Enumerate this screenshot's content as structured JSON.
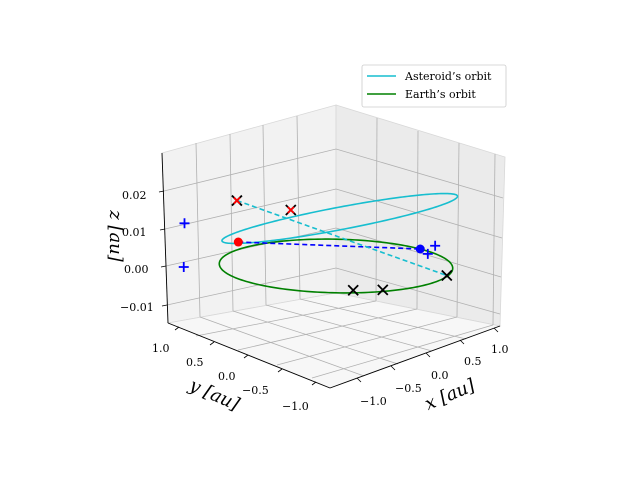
{
  "chart_data": {
    "type": "line",
    "projection": "3d",
    "xlabel": "x [au]",
    "ylabel": "y [au]",
    "zlabel": "z [au]",
    "x_ticks": [
      "−1.0",
      "−0.5",
      "0.0",
      "0.5",
      "1.0"
    ],
    "y_ticks": [
      "−1.0",
      "−0.5",
      "0.0",
      "0.5",
      "1.0"
    ],
    "z_ticks": [
      "−0.01",
      "0.00",
      "0.01",
      "0.02"
    ],
    "xlim": [
      -1.2,
      1.2
    ],
    "ylim": [
      -1.2,
      1.2
    ],
    "zlim": [
      -0.015,
      0.029
    ],
    "grid": true,
    "legend_position": "upper-right",
    "legend": [
      {
        "label": "Asteroid’s orbit",
        "color": "#17becf"
      },
      {
        "label": "Earth’s orbit",
        "color": "#008000"
      }
    ],
    "series": [
      {
        "name": "Asteroid’s orbit",
        "kind": "ellipse",
        "color": "#17becf",
        "semi_major_axis": 1.1,
        "eccentricity": 0.08,
        "inclination_deg": 1.1,
        "node_deg": 200
      },
      {
        "name": "Earth’s orbit",
        "kind": "circle",
        "color": "#008000",
        "radius": 1.0,
        "z": 0.0
      }
    ],
    "markers": {
      "sun_earth_point": {
        "x": 1.0,
        "y": -0.05,
        "z": 0.0,
        "color": "#0000ff"
      },
      "asteroid_point": {
        "x": -0.18,
        "y": 0.98,
        "z": 0.002,
        "color": "#ff0000"
      },
      "black_crosses": [
        {
          "x": -0.92,
          "y": 0.3,
          "z": 0.02
        },
        {
          "x": 0.2,
          "y": 0.72,
          "z": 0.01
        },
        {
          "x": -0.35,
          "y": -0.88,
          "z": 0.0
        },
        {
          "x": -0.55,
          "y": -0.72,
          "z": 0.0
        },
        {
          "x": 0.45,
          "y": -0.88,
          "z": 0.0
        }
      ],
      "red_crosses": [
        {
          "x": -0.92,
          "y": 0.3,
          "z": 0.02
        },
        {
          "x": 0.2,
          "y": 0.72,
          "z": 0.01
        }
      ],
      "blue_plus": [
        {
          "x": -1.15,
          "y": 0.7,
          "z": 0.013
        },
        {
          "x": -1.0,
          "y": 0.85,
          "z": 0.0
        },
        {
          "x": 1.08,
          "y": -0.15,
          "z": 0.001
        },
        {
          "x": 1.02,
          "y": -0.12,
          "z": -0.001
        }
      ]
    },
    "dashed_lines": [
      {
        "from": "asteroid_point",
        "to": "sun_earth_point",
        "color": "#0000ff"
      },
      {
        "from": {
          "x": -0.92,
          "y": 0.3,
          "z": 0.02
        },
        "to": {
          "x": 0.45,
          "y": -0.88,
          "z": 0.0
        },
        "color": "#17becf"
      }
    ]
  }
}
